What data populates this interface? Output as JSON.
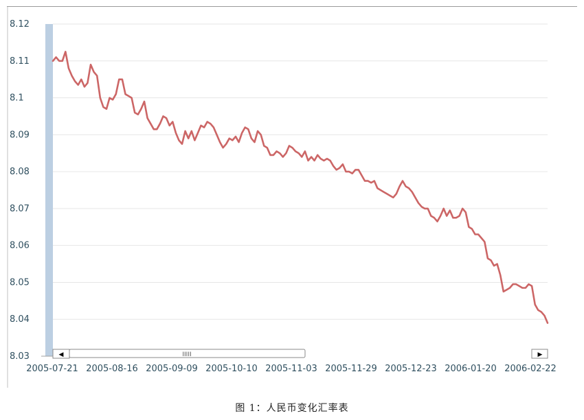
{
  "caption": "图 1：人民币变化汇率表",
  "chart_data": {
    "type": "line",
    "ylim": [
      8.03,
      8.12
    ],
    "yticks": [
      "8.12",
      "8.11",
      "8.1",
      "8.09",
      "8.08",
      "8.07",
      "8.06",
      "8.05",
      "8.04",
      "8.03"
    ],
    "yticks_values": [
      8.12,
      8.11,
      8.1,
      8.09,
      8.08,
      8.07,
      8.06,
      8.05,
      8.04,
      8.03
    ],
    "xticks": [
      "2005-07-21",
      "2005-08-16",
      "2005-09-09",
      "2005-10-10",
      "2005-11-03",
      "2005-11-29",
      "2005-12-23",
      "2006-01-20",
      "2006-02-22"
    ],
    "grid": true,
    "line_color": "#cc6666",
    "scrollbar": {
      "thumb_grip": "IIIII",
      "left_arrow": "◀",
      "right_arrow": "▶"
    },
    "series": [
      {
        "values": [
          8.11,
          8.111,
          8.11,
          8.11,
          8.1125,
          8.108,
          8.106,
          8.1045,
          8.1035,
          8.105,
          8.103,
          8.104,
          8.109,
          8.107,
          8.106,
          8.1,
          8.0975,
          8.097,
          8.1,
          8.0995,
          8.101,
          8.105,
          8.105,
          8.101,
          8.1005,
          8.1,
          8.096,
          8.0955,
          8.097,
          8.099,
          8.0945,
          8.093,
          8.0915,
          8.0915,
          8.093,
          8.095,
          8.0945,
          8.0925,
          8.0935,
          8.0905,
          8.0885,
          8.0875,
          8.091,
          8.089,
          8.091,
          8.0885,
          8.0905,
          8.0925,
          8.092,
          8.0935,
          8.093,
          8.092,
          8.09,
          8.088,
          8.0865,
          8.0875,
          8.089,
          8.0885,
          8.0895,
          8.088,
          8.0905,
          8.092,
          8.0915,
          8.089,
          8.088,
          8.091,
          8.09,
          8.087,
          8.0865,
          8.0845,
          8.0845,
          8.0855,
          8.085,
          8.084,
          8.085,
          8.087,
          8.0865,
          8.0855,
          8.085,
          8.084,
          8.0855,
          8.083,
          8.084,
          8.083,
          8.0845,
          8.0835,
          8.083,
          8.0835,
          8.083,
          8.0815,
          8.0805,
          8.081,
          8.082,
          8.08,
          8.08,
          8.0795,
          8.0805,
          8.0805,
          8.079,
          8.0775,
          8.0775,
          8.077,
          8.0775,
          8.0755,
          8.075,
          8.0745,
          8.074,
          8.0735,
          8.073,
          8.074,
          8.076,
          8.0775,
          8.076,
          8.0755,
          8.0745,
          8.073,
          8.0715,
          8.0705,
          8.07,
          8.07,
          8.068,
          8.0675,
          8.0665,
          8.068,
          8.07,
          8.068,
          8.0695,
          8.0675,
          8.0675,
          8.068,
          8.07,
          8.069,
          8.065,
          8.0645,
          8.063,
          8.063,
          8.062,
          8.061,
          8.0565,
          8.056,
          8.0545,
          8.055,
          8.052,
          8.0475,
          8.048,
          8.0485,
          8.0495,
          8.0495,
          8.049,
          8.0485,
          8.0485,
          8.0495,
          8.049,
          8.044,
          8.0425,
          8.042,
          8.041,
          8.039
        ]
      }
    ]
  }
}
